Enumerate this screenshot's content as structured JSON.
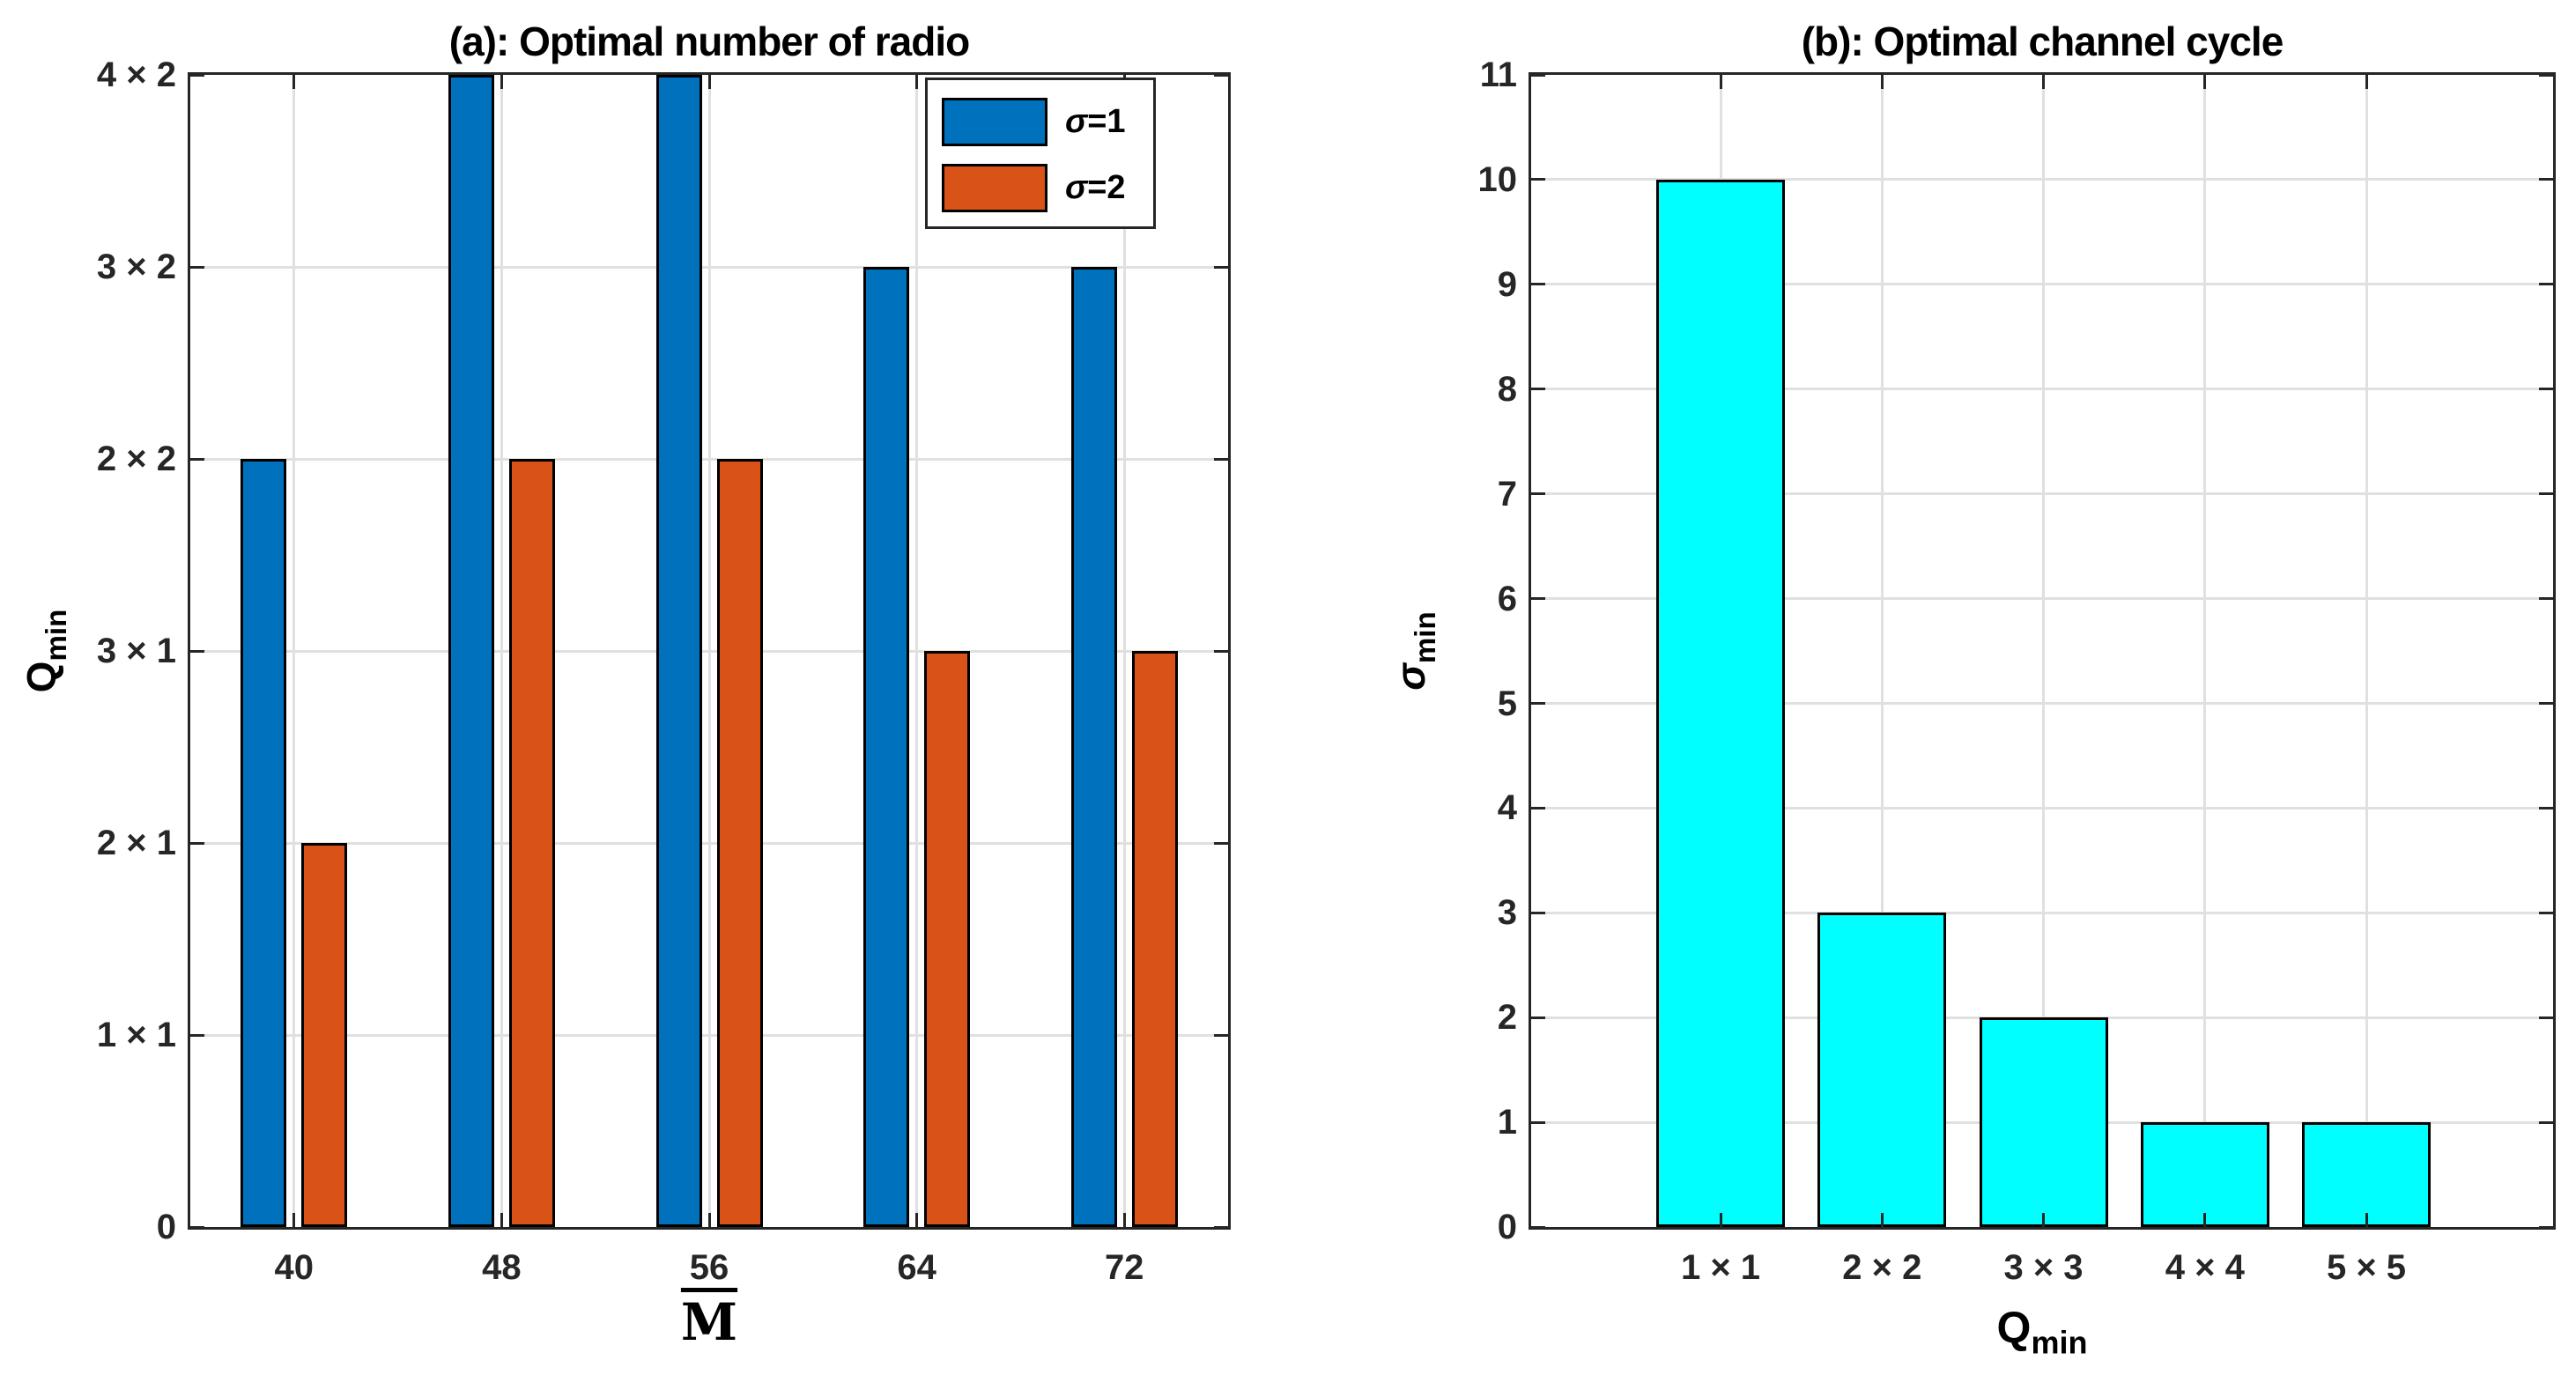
{
  "figure": {
    "background": "#FFFFFF"
  },
  "colors": {
    "axis": "#262626",
    "grid": "#E0E0E0",
    "bar_edge": "#000000",
    "series_blue": "#0072BD",
    "series_orange": "#D95319",
    "series_cyan": "#00FFFF"
  },
  "chart_data": [
    {
      "id": "a",
      "type": "bar",
      "title": "(a): Optimal number of radio",
      "xlabel": {
        "text": "M",
        "overline": true
      },
      "ylabel": {
        "base": "Q",
        "sub": "min"
      },
      "categories": [
        "40",
        "48",
        "56",
        "64",
        "72"
      ],
      "ytick_labels": [
        "0",
        "1 × 1",
        "2 × 1",
        "3 × 1",
        "2 × 2",
        "3 × 2",
        "4 × 2"
      ],
      "ylim": [
        0,
        6
      ],
      "grid": true,
      "legend_position": "top-right",
      "series": [
        {
          "label": "σ=1",
          "color": "#0072BD",
          "values": [
            4,
            6,
            6,
            5,
            5
          ],
          "value_labels": [
            "2 × 2",
            "4 × 2",
            "4 × 2",
            "3 × 2",
            "3 × 2"
          ]
        },
        {
          "label": "σ=2",
          "color": "#D95319",
          "values": [
            2,
            4,
            4,
            3,
            3
          ],
          "value_labels": [
            "2 × 1",
            "2 × 2",
            "2 × 2",
            "3 × 1",
            "3 × 1"
          ]
        }
      ]
    },
    {
      "id": "b",
      "type": "bar",
      "title": "(b): Optimal channel cycle",
      "xlabel": {
        "base": "Q",
        "sub": "min"
      },
      "ylabel": {
        "base": "σ",
        "sub": "min",
        "italic": true
      },
      "categories": [
        "1 × 1",
        "2 × 2",
        "3 × 3",
        "4 × 4",
        "5 × 5"
      ],
      "ytick_labels": [
        "0",
        "1",
        "2",
        "3",
        "4",
        "5",
        "6",
        "7",
        "8",
        "9",
        "10",
        "11"
      ],
      "ylim": [
        0,
        11
      ],
      "grid": true,
      "series": [
        {
          "label": "σ min",
          "color": "#00FFFF",
          "values": [
            10,
            3,
            2,
            1,
            1
          ]
        }
      ]
    }
  ]
}
